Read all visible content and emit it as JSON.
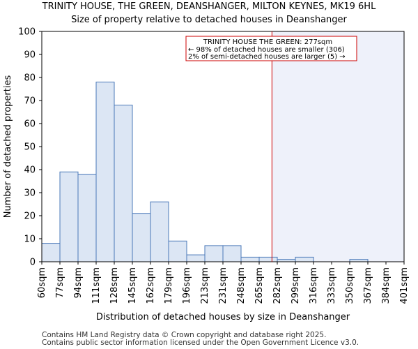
{
  "header": {
    "title": "TRINITY HOUSE, THE GREEN, DEANSHANGER, MILTON KEYNES, MK19 6HL",
    "subtitle": "Size of property relative to detached houses in Deanshanger"
  },
  "footer": {
    "line1": "Contains HM Land Registry data © Crown copyright and database right 2025.",
    "line2": "Contains public sector information licensed under the Open Government Licence v3.0."
  },
  "chart_data": {
    "type": "bar",
    "title": "TRINITY HOUSE, THE GREEN, DEANSHANGER, MILTON KEYNES, MK19 6HL",
    "subtitle": "Size of property relative to detached houses in Deanshanger",
    "xlabel": "Distribution of detached houses by size in Deanshanger",
    "ylabel": "Number of detached properties",
    "ylim": [
      0,
      100
    ],
    "yticks": [
      0,
      10,
      20,
      30,
      40,
      50,
      60,
      70,
      80,
      90,
      100
    ],
    "bin_edges": [
      60,
      77,
      94,
      111,
      128,
      145,
      162,
      179,
      196,
      213,
      231,
      248,
      265,
      282,
      299,
      316,
      333,
      350,
      367,
      384,
      401
    ],
    "tick_labels": [
      "60sqm",
      "77sqm",
      "94sqm",
      "111sqm",
      "128sqm",
      "145sqm",
      "162sqm",
      "179sqm",
      "196sqm",
      "213sqm",
      "231sqm",
      "248sqm",
      "265sqm",
      "282sqm",
      "299sqm",
      "316sqm",
      "333sqm",
      "350sqm",
      "367sqm",
      "384sqm",
      "401sqm"
    ],
    "values": [
      8,
      39,
      38,
      78,
      68,
      21,
      26,
      9,
      3,
      7,
      7,
      2,
      2,
      1,
      2,
      0,
      0,
      1,
      0,
      0
    ],
    "marker": {
      "value": 277,
      "unit": "sqm",
      "color": "#cc0000"
    },
    "annotation": {
      "line1": "TRINITY HOUSE THE GREEN: 277sqm",
      "line2": "← 98% of detached houses are smaller (306)",
      "line3": "2% of semi-detached houses are larger (5) →"
    },
    "bar_fill": "#dce6f4",
    "bar_edge": "#4a78b8",
    "shade_fill": "#eef1fa",
    "grid": false
  }
}
